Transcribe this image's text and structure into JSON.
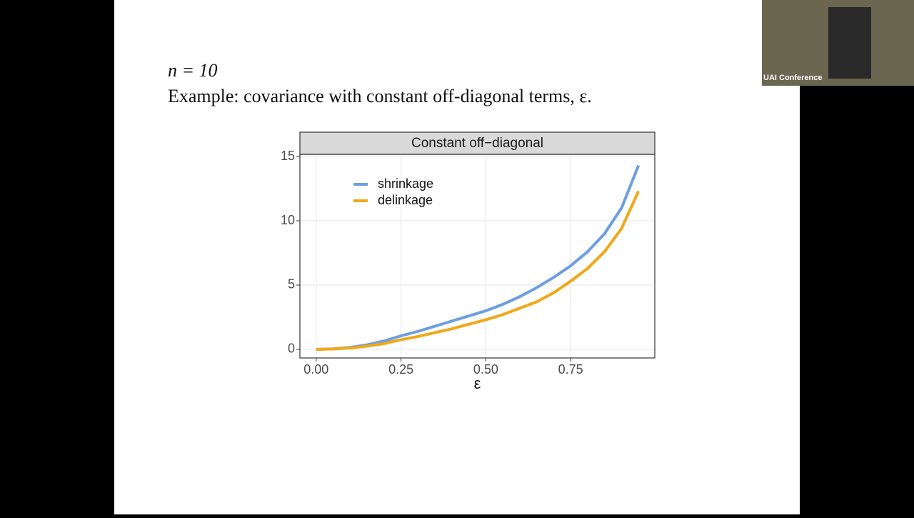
{
  "slide": {
    "line1": "n = 10",
    "line2": "Example: covariance with constant off-diagonal terms, ε."
  },
  "video": {
    "label": "UAI Conference"
  },
  "chart_data": {
    "type": "line",
    "title": "Constant off−diagonal",
    "x_label": "ε",
    "x": [
      0,
      0.05,
      0.1,
      0.15,
      0.2,
      0.25,
      0.3,
      0.35,
      0.4,
      0.45,
      0.5,
      0.55,
      0.6,
      0.65,
      0.7,
      0.75,
      0.8,
      0.85,
      0.9,
      0.95
    ],
    "series": [
      {
        "name": "shrinkage",
        "color": "#6c9fe0",
        "values": [
          0,
          0.04,
          0.15,
          0.35,
          0.65,
          1.05,
          1.4,
          1.8,
          2.2,
          2.6,
          3.0,
          3.5,
          4.1,
          4.8,
          5.6,
          6.5,
          7.6,
          9.0,
          11.0,
          14.3
        ]
      },
      {
        "name": "delinkage",
        "color": "#f0a818",
        "values": [
          0,
          0.03,
          0.1,
          0.25,
          0.45,
          0.75,
          1.0,
          1.3,
          1.6,
          1.95,
          2.3,
          2.7,
          3.2,
          3.7,
          4.4,
          5.3,
          6.3,
          7.6,
          9.4,
          12.3
        ]
      }
    ],
    "xlim": [
      -0.048,
      0.998
    ],
    "ylim": [
      -0.67,
      15.17
    ],
    "xticks": [
      {
        "value": 0,
        "label": "0.00"
      },
      {
        "value": 0.25,
        "label": "0.25"
      },
      {
        "value": 0.5,
        "label": "0.50"
      },
      {
        "value": 0.75,
        "label": "0.75"
      }
    ],
    "yticks": [
      0,
      5,
      10,
      15
    ],
    "grid": true,
    "legend_position": "top-left"
  }
}
